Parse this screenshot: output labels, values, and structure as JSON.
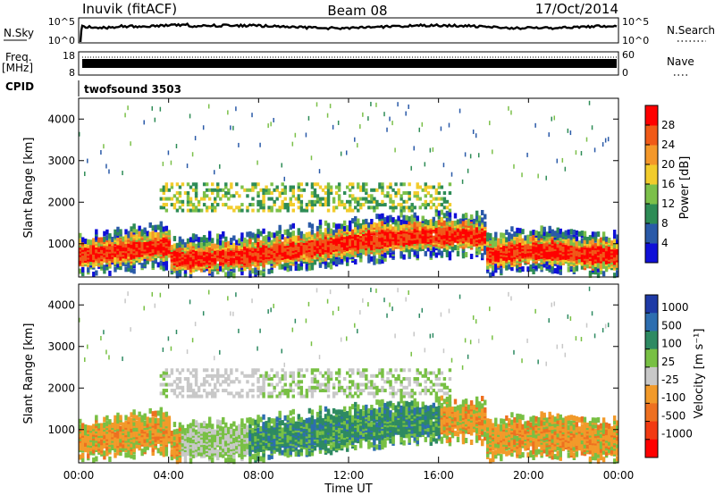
{
  "header": {
    "station": "Inuvik (fitACF)",
    "beam": "Beam 08",
    "date": "17/Oct/2014"
  },
  "strips": {
    "nsky": {
      "label": "N.Sky",
      "ticks": [
        "10^5",
        "10^0"
      ],
      "right_label": "N.Search",
      "right_ticks": [
        "10^5",
        "10^0"
      ]
    },
    "freq": {
      "label_top": "Freq.",
      "label_bottom": "[MHz]",
      "ticks": [
        "18",
        "8"
      ],
      "right_label": "Nave",
      "right_ticks": [
        "60",
        "0"
      ]
    },
    "cpid": {
      "label": "CPID",
      "value": "twofsound 3503"
    }
  },
  "colors": {
    "power": [
      "#1010d8",
      "#2a5aa8",
      "#2e8c56",
      "#7cc04a",
      "#f2cc2c",
      "#f4982a",
      "#f05a18",
      "#ff0000"
    ],
    "velocity": [
      "#1e3aa6",
      "#2d6eb0",
      "#2e8a62",
      "#78c044",
      "#c8c8c8",
      "#f29a2a",
      "#ee7020",
      "#f23a12",
      "#ff0000"
    ]
  },
  "chart_data": [
    {
      "type": "heatmap",
      "name": "power-panel",
      "ylabel": "Slant Range [km]",
      "ylim": [
        200,
        4500
      ],
      "yticks": [
        "1000",
        "2000",
        "3000",
        "4000"
      ],
      "xlim_hours": [
        0,
        24
      ],
      "colorbar_label": "Power [dB]",
      "colorbar_ticks": [
        "4",
        "8",
        "12",
        "16",
        "20",
        "24",
        "28"
      ],
      "colorbar_range": [
        0,
        32
      ]
    },
    {
      "type": "heatmap",
      "name": "velocity-panel",
      "ylabel": "Slant Range [km]",
      "ylim": [
        200,
        4500
      ],
      "yticks": [
        "1000",
        "2000",
        "3000",
        "4000"
      ],
      "xlim_hours": [
        0,
        24
      ],
      "colorbar_label": "Velocity [m s⁻¹]",
      "colorbar_ticks": [
        "1000",
        "500",
        "100",
        "25",
        "-25",
        "-100",
        "-500",
        "-1000"
      ]
    }
  ],
  "x_axis": {
    "label": "Time UT",
    "ticks": [
      "00:00",
      "04:00",
      "08:00",
      "12:00",
      "16:00",
      "20:00",
      "00:00"
    ]
  }
}
